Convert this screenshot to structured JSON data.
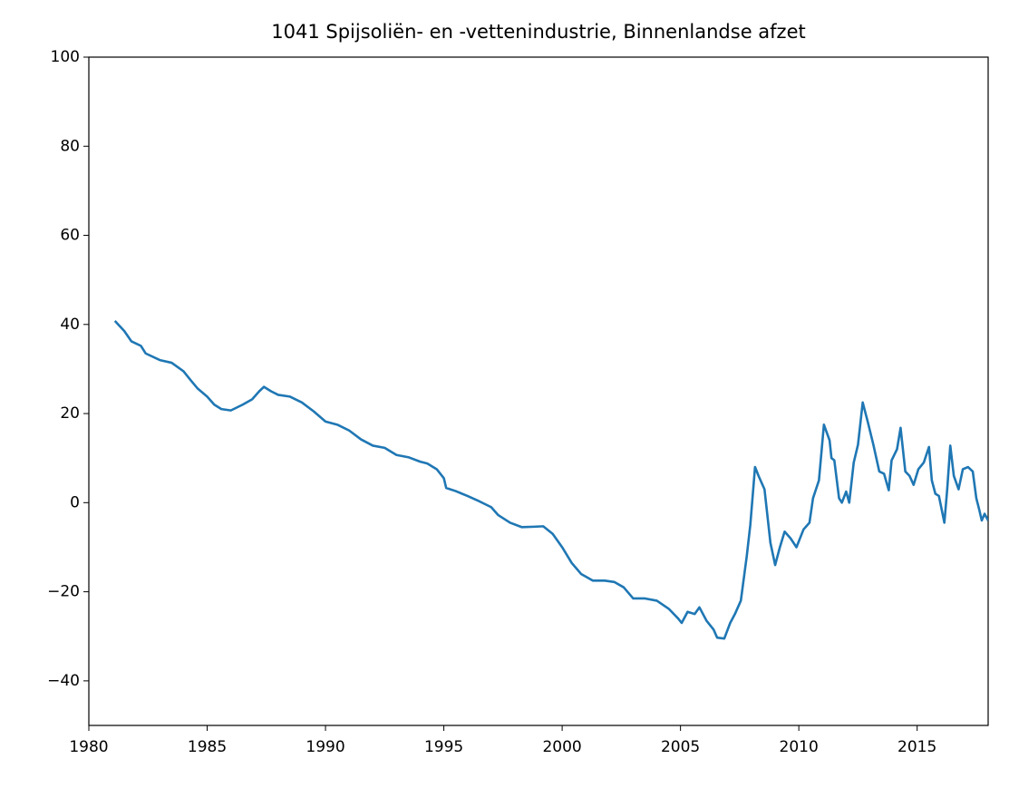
{
  "chart_data": {
    "type": "line",
    "title": "1041 Spijsoliën- en -vettenindustrie, Binnenlandse afzet",
    "xlim": [
      1980,
      2018
    ],
    "xticks": [
      1980,
      1985,
      1990,
      1995,
      2000,
      2005,
      2010,
      2015
    ],
    "ylim": [
      -50,
      100
    ],
    "yticks": [
      {
        "value": -40,
        "label": "−40"
      },
      {
        "value": -20,
        "label": "−20"
      },
      0,
      20,
      40,
      60,
      80,
      100
    ],
    "grid": false,
    "series": [
      {
        "color": "#1f77b4",
        "x": [
          1981.1,
          1981.5,
          1981.8,
          1982.2,
          1982.4,
          1983,
          1983.5,
          1984,
          1984.3,
          1984.6,
          1985,
          1985.3,
          1985.6,
          1986,
          1986.5,
          1986.9,
          1987.2,
          1987.4,
          1987.7,
          1988,
          1988.5,
          1989,
          1989.5,
          1990,
          1990.5,
          1991,
          1991.5,
          1992,
          1992.5,
          1993,
          1993.5,
          1994,
          1994.3,
          1994.7,
          1995,
          1995.1,
          1995.5,
          1996,
          1996.5,
          1997,
          1997.3,
          1997.8,
          1998.3,
          1998.8,
          1999.2,
          1999.6,
          2000,
          2000.4,
          2000.8,
          2001.3,
          2001.8,
          2002.2,
          2002.6,
          2003,
          2003.5,
          2004,
          2004.5,
          2004.9,
          2005.05,
          2005.3,
          2005.6,
          2005.8,
          2006.1,
          2006.4,
          2006.55,
          2006.85,
          2007.1,
          2007.3,
          2007.55,
          2007.8,
          2007.95,
          2008.15,
          2008.3,
          2008.55,
          2008.8,
          2009,
          2009.2,
          2009.4,
          2009.65,
          2009.9,
          2010.2,
          2010.45,
          2010.6,
          2010.85,
          2011.06,
          2011.3,
          2011.38,
          2011.5,
          2011.7,
          2011.82,
          2012,
          2012.13,
          2012.32,
          2012.5,
          2012.7,
          2012.92,
          2013.15,
          2013.4,
          2013.6,
          2013.8,
          2013.92,
          2014.15,
          2014.3,
          2014.5,
          2014.68,
          2014.85,
          2015.05,
          2015.28,
          2015.5,
          2015.62,
          2015.77,
          2015.92,
          2016.15,
          2016.27,
          2016.4,
          2016.55,
          2016.75,
          2016.93,
          2017.15,
          2017.35,
          2017.5,
          2017.62,
          2017.73,
          2017.85,
          2018
        ],
        "values": [
          40.8,
          38.5,
          36.2,
          35.2,
          33.5,
          32,
          31.4,
          29.5,
          27.5,
          25.6,
          23.8,
          22,
          21,
          20.7,
          22,
          23.2,
          25,
          26,
          25,
          24.2,
          23.8,
          22.5,
          20.5,
          18.2,
          17.5,
          16.2,
          14.2,
          12.8,
          12.3,
          10.7,
          10.2,
          9.2,
          8.8,
          7.5,
          5.5,
          3.3,
          2.6,
          1.5,
          0.3,
          -1,
          -2.8,
          -4.5,
          -5.5,
          -5.4,
          -5.3,
          -7,
          -10,
          -13.5,
          -16,
          -17.5,
          -17.5,
          -17.8,
          -19,
          -21.5,
          -21.5,
          -22,
          -23.8,
          -26,
          -27,
          -24.5,
          -25,
          -23.5,
          -26.5,
          -28.5,
          -30.3,
          -30.5,
          -27,
          -25,
          -22,
          -12,
          -5,
          8,
          6,
          3,
          -9,
          -14,
          -10,
          -6.5,
          -8,
          -10,
          -6,
          -4.5,
          1,
          5,
          17.5,
          14,
          10,
          9.5,
          1,
          0,
          2.5,
          0,
          9,
          13,
          22.5,
          18,
          13,
          7,
          6.5,
          2.8,
          9.5,
          12,
          16.8,
          7,
          6,
          4,
          7.5,
          9,
          12.5,
          5,
          2,
          1.5,
          -4.5,
          3,
          12.8,
          6,
          3,
          7.5,
          8,
          7,
          1,
          -1.5,
          -4,
          -2.5,
          -4
        ]
      }
    ]
  }
}
